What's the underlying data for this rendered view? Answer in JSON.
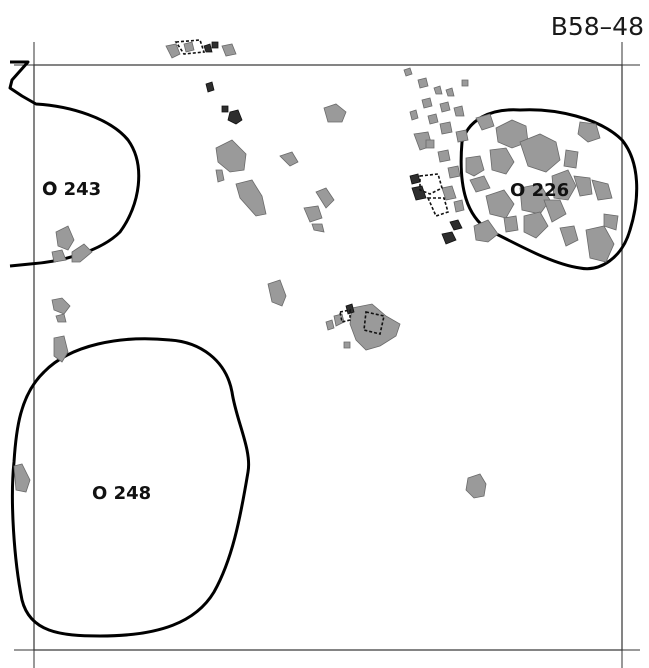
{
  "sheet": {
    "id": "B58–48"
  },
  "features": [
    {
      "id": "O 243"
    },
    {
      "id": "O 226"
    },
    {
      "id": "O 248"
    }
  ],
  "colors": {
    "stone": "#9a9a9a",
    "charcoal": "#2e2e2e",
    "outline": "#000000",
    "grid": "#333333"
  }
}
